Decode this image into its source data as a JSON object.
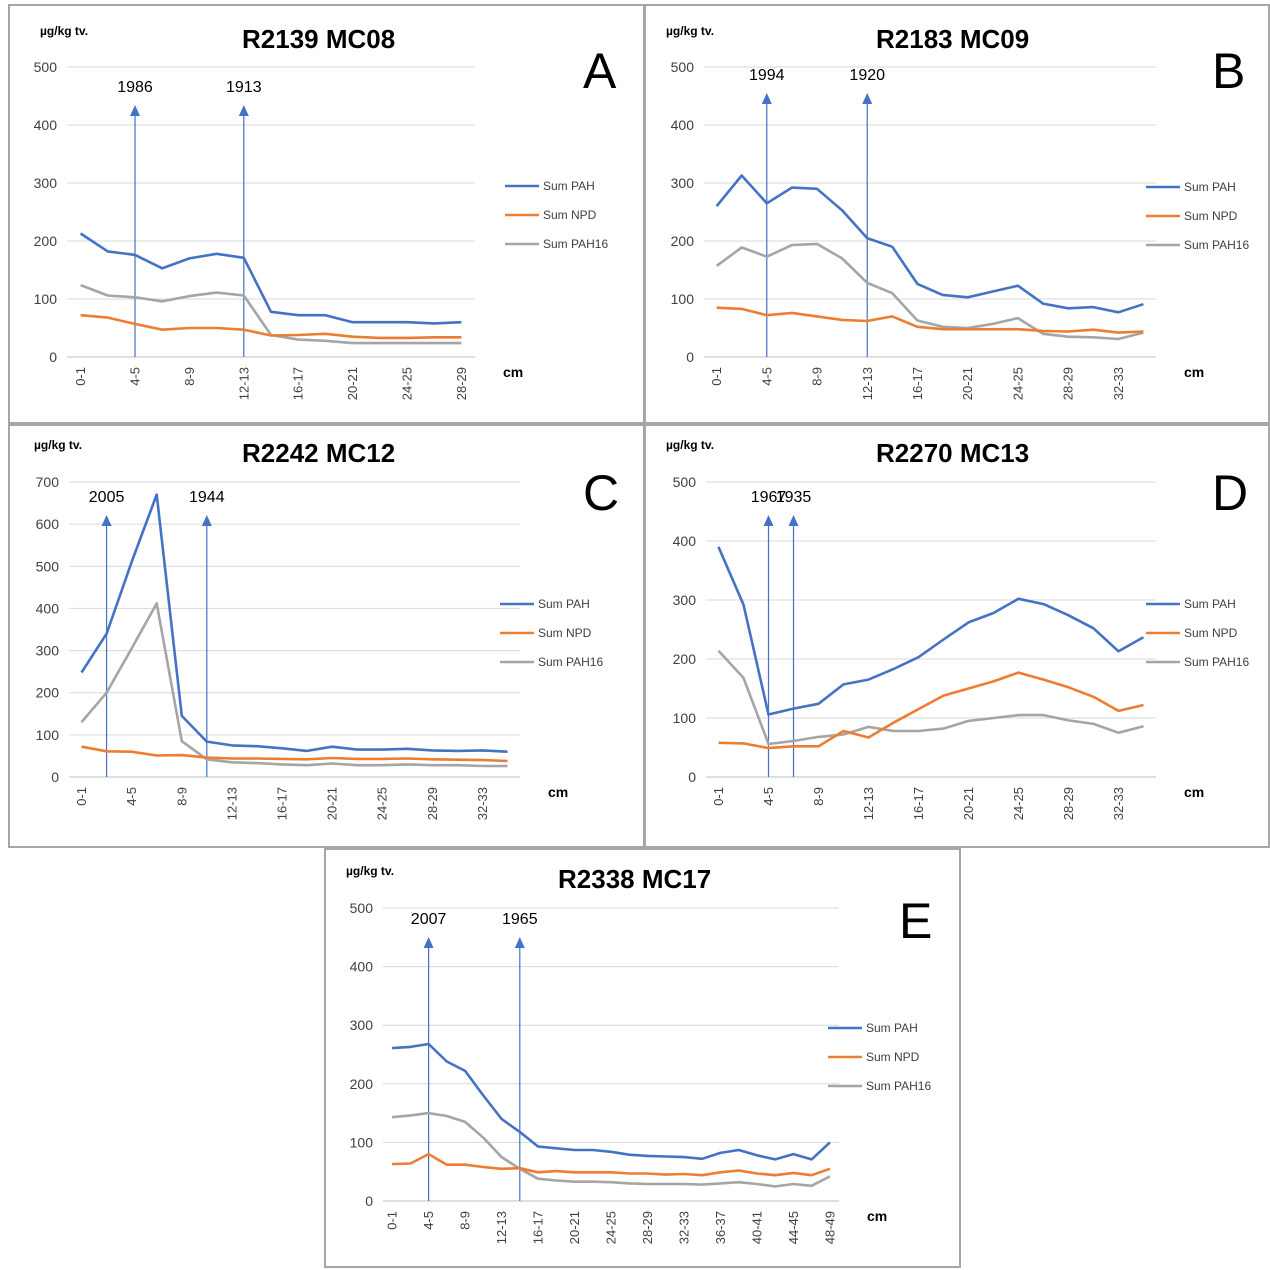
{
  "legend_labels": [
    "Sum PAH",
    "Sum NPD",
    "Sum PAH16"
  ],
  "colors": {
    "pah": "#4472c4",
    "npd": "#ed7d31",
    "pah16": "#a5a5a5",
    "grid": "#d9d9d9",
    "marker": "#4472c4"
  },
  "chart_data": [
    {
      "type": "line",
      "panel_letter": "A",
      "title": "R2139 MC08",
      "ylabel": "µg/kg tv.",
      "xlabel": "cm",
      "ylim": [
        0,
        500
      ],
      "yticks": [
        0,
        100,
        200,
        300,
        400,
        500
      ],
      "categories": [
        "0-1",
        "2-3",
        "4-5",
        "6-7",
        "8-9",
        "10-11",
        "12-13",
        "14-15",
        "16-17",
        "18-19",
        "20-21",
        "22-23",
        "24-25",
        "26-27",
        "28-29"
      ],
      "series": [
        {
          "name": "Sum PAH",
          "values": [
            213,
            182,
            176,
            153,
            170,
            178,
            171,
            78,
            72,
            72,
            60,
            60,
            60,
            58,
            60
          ]
        },
        {
          "name": "Sum NPD",
          "values": [
            72,
            68,
            57,
            47,
            50,
            50,
            47,
            37,
            38,
            40,
            35,
            33,
            33,
            34,
            34
          ]
        },
        {
          "name": "Sum PAH16",
          "values": [
            124,
            106,
            103,
            96,
            105,
            111,
            106,
            38,
            30,
            28,
            24,
            24,
            24,
            24,
            24
          ]
        }
      ],
      "markers": [
        {
          "label": "1986",
          "category": "4-5"
        },
        {
          "label": "1913",
          "category": "12-13"
        }
      ],
      "legend_position": "right"
    },
    {
      "type": "line",
      "panel_letter": "B",
      "title": "R2183 MC09",
      "ylabel": "µg/kg tv.",
      "xlabel": "cm",
      "ylim": [
        0,
        500
      ],
      "yticks": [
        0,
        100,
        200,
        300,
        400,
        500
      ],
      "categories": [
        "0-1",
        "2-3",
        "4-5",
        "6-7",
        "8-9",
        "10-11",
        "12-13",
        "14-15",
        "16-17",
        "18-19",
        "20-21",
        "22-23",
        "24-25",
        "26-27",
        "28-29",
        "30-31",
        "32-33",
        "34-35"
      ],
      "series": [
        {
          "name": "Sum PAH",
          "values": [
            260,
            313,
            265,
            292,
            290,
            253,
            205,
            190,
            126,
            107,
            103,
            113,
            123,
            92,
            84,
            86,
            77,
            91
          ]
        },
        {
          "name": "Sum NPD",
          "values": [
            85,
            83,
            72,
            76,
            70,
            64,
            62,
            70,
            52,
            48,
            48,
            48,
            48,
            45,
            44,
            47,
            42,
            44
          ]
        },
        {
          "name": "Sum PAH16",
          "values": [
            157,
            189,
            173,
            193,
            195,
            170,
            128,
            110,
            63,
            52,
            50,
            57,
            67,
            40,
            35,
            34,
            31,
            42
          ]
        }
      ],
      "markers": [
        {
          "label": "1994",
          "category": "4-5"
        },
        {
          "label": "1920",
          "category": "12-13"
        }
      ],
      "legend_position": "right"
    },
    {
      "type": "line",
      "panel_letter": "C",
      "title": "R2242 MC12",
      "ylabel": "µg/kg tv.",
      "xlabel": "cm",
      "ylim": [
        0,
        700
      ],
      "yticks": [
        0,
        100,
        200,
        300,
        400,
        500,
        600,
        700
      ],
      "categories": [
        "0-1",
        "2-3",
        "4-5",
        "6-7",
        "8-9",
        "10-11",
        "12-13",
        "14-15",
        "16-17",
        "18-19",
        "20-21",
        "22-23",
        "24-25",
        "26-27",
        "28-29",
        "30-31",
        "32-33",
        "34-35"
      ],
      "series": [
        {
          "name": "Sum PAH",
          "values": [
            248,
            340,
            510,
            670,
            145,
            84,
            75,
            73,
            68,
            62,
            72,
            65,
            65,
            67,
            63,
            62,
            63,
            60
          ]
        },
        {
          "name": "Sum NPD",
          "values": [
            72,
            61,
            60,
            51,
            52,
            46,
            44,
            44,
            43,
            42,
            45,
            43,
            43,
            44,
            42,
            41,
            40,
            38
          ]
        },
        {
          "name": "Sum PAH16",
          "values": [
            130,
            200,
            305,
            412,
            85,
            42,
            35,
            33,
            30,
            28,
            32,
            28,
            28,
            30,
            28,
            28,
            26,
            26
          ]
        }
      ],
      "markers": [
        {
          "label": "2005",
          "category": "2-3"
        },
        {
          "label": "1944",
          "category": "10-11"
        }
      ],
      "legend_position": "right"
    },
    {
      "type": "line",
      "panel_letter": "D",
      "title": "R2270 MC13",
      "ylabel": "µg/kg tv.",
      "xlabel": "cm",
      "ylim": [
        0,
        500
      ],
      "yticks": [
        0,
        100,
        200,
        300,
        400,
        500
      ],
      "categories": [
        "0-1",
        "2-3",
        "4-5",
        "6-7",
        "8-9",
        "10-11",
        "12-13",
        "14-15",
        "16-17",
        "18-19",
        "20-21",
        "22-23",
        "24-25",
        "26-27",
        "28-29",
        "30-31",
        "32-33",
        "34-35"
      ],
      "series": [
        {
          "name": "Sum PAH",
          "values": [
            390,
            292,
            106,
            116,
            124,
            157,
            165,
            183,
            203,
            233,
            262,
            278,
            302,
            293,
            274,
            252,
            213,
            237
          ]
        },
        {
          "name": "Sum NPD",
          "values": [
            58,
            57,
            49,
            52,
            52,
            78,
            67,
            92,
            115,
            138,
            150,
            162,
            177,
            165,
            152,
            136,
            112,
            122
          ]
        },
        {
          "name": "Sum PAH16",
          "values": [
            214,
            168,
            56,
            61,
            68,
            72,
            85,
            78,
            78,
            82,
            95,
            100,
            105,
            105,
            96,
            90,
            75,
            86
          ]
        }
      ],
      "markers": [
        {
          "label": "1967",
          "category": "4-5"
        },
        {
          "label": "1935",
          "category": "6-7"
        }
      ],
      "legend_position": "right"
    },
    {
      "type": "line",
      "panel_letter": "E",
      "title": "R2338 MC17",
      "ylabel": "µg/kg tv.",
      "xlabel": "cm",
      "ylim": [
        0,
        500
      ],
      "yticks": [
        0,
        100,
        200,
        300,
        400,
        500
      ],
      "categories": [
        "0-1",
        "2-3",
        "4-5",
        "6-7",
        "8-9",
        "10-11",
        "12-13",
        "14-15",
        "16-17",
        "18-19",
        "20-21",
        "22-23",
        "24-25",
        "26-27",
        "28-29",
        "30-31",
        "32-33",
        "34-35",
        "36-37",
        "38-39",
        "40-41",
        "42-43",
        "44-45",
        "46-47",
        "48-49"
      ],
      "series": [
        {
          "name": "Sum PAH",
          "values": [
            261,
            263,
            268,
            238,
            222,
            180,
            140,
            118,
            93,
            90,
            87,
            87,
            84,
            79,
            77,
            76,
            75,
            72,
            82,
            87,
            78,
            71,
            80,
            71,
            100
          ]
        },
        {
          "name": "Sum NPD",
          "values": [
            63,
            64,
            80,
            62,
            62,
            58,
            55,
            56,
            49,
            51,
            49,
            49,
            49,
            47,
            47,
            45,
            46,
            44,
            49,
            52,
            47,
            44,
            48,
            44,
            55
          ]
        },
        {
          "name": "Sum PAH16",
          "values": [
            143,
            146,
            150,
            145,
            135,
            108,
            75,
            55,
            38,
            35,
            33,
            33,
            32,
            30,
            29,
            29,
            29,
            28,
            30,
            32,
            29,
            25,
            29,
            26,
            42
          ]
        }
      ],
      "markers": [
        {
          "label": "2007",
          "category": "4-5"
        },
        {
          "label": "1965",
          "category": "14-15"
        }
      ],
      "legend_position": "right"
    }
  ]
}
